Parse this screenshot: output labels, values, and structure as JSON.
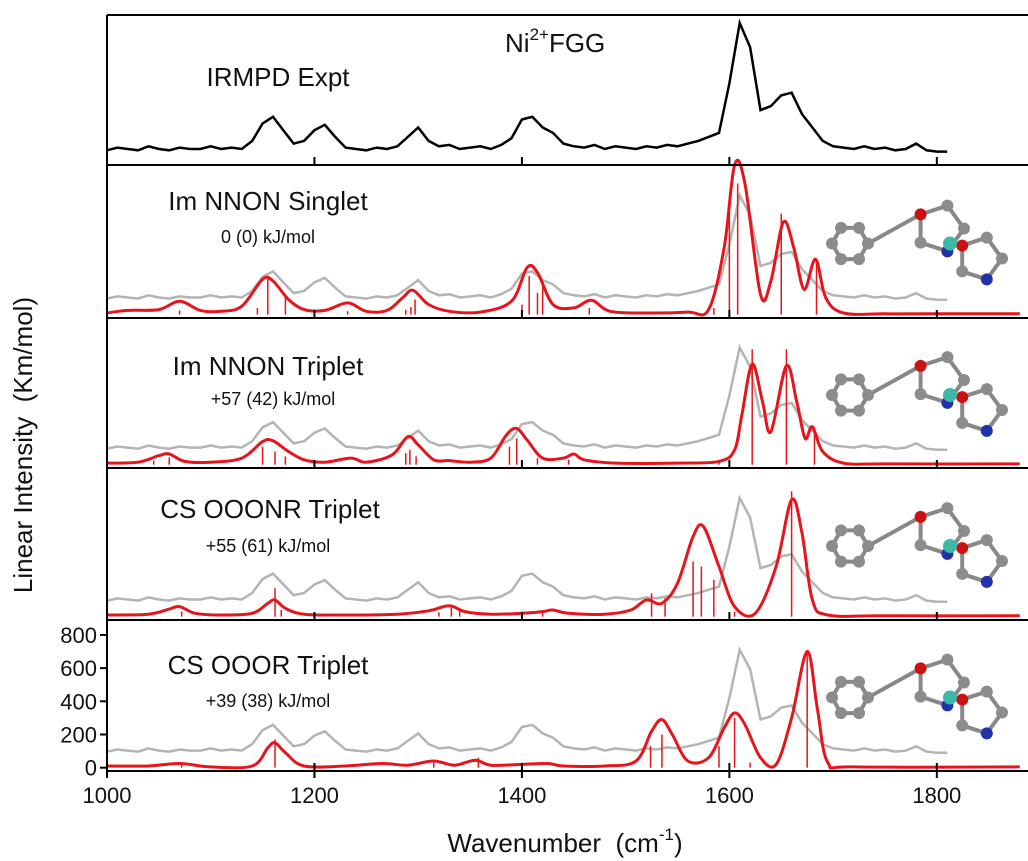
{
  "chart_data": [
    {
      "type": "line",
      "title": "IRMPD Expt",
      "annotation": [
        "Ni",
        "2+",
        "FGG"
      ],
      "color": "#000000",
      "xlim": [
        1000,
        1885
      ],
      "x": [
        1000,
        1010,
        1020,
        1030,
        1040,
        1050,
        1060,
        1070,
        1080,
        1090,
        1100,
        1110,
        1120,
        1130,
        1140,
        1150,
        1160,
        1170,
        1180,
        1190,
        1200,
        1210,
        1220,
        1230,
        1240,
        1250,
        1260,
        1270,
        1280,
        1290,
        1300,
        1310,
        1320,
        1330,
        1340,
        1350,
        1360,
        1370,
        1380,
        1390,
        1400,
        1410,
        1420,
        1430,
        1440,
        1450,
        1460,
        1470,
        1480,
        1490,
        1500,
        1510,
        1520,
        1530,
        1540,
        1550,
        1560,
        1570,
        1580,
        1590,
        1600,
        1610,
        1620,
        1630,
        1640,
        1650,
        1660,
        1670,
        1680,
        1690,
        1700,
        1710,
        1720,
        1730,
        1740,
        1750,
        1760,
        1770,
        1780,
        1790,
        1800,
        1810
      ],
      "values": [
        5,
        7,
        6,
        5,
        8,
        6,
        5,
        7,
        6,
        6,
        8,
        6,
        7,
        6,
        12,
        25,
        30,
        20,
        10,
        12,
        20,
        24,
        15,
        7,
        6,
        5,
        7,
        6,
        8,
        15,
        22,
        12,
        8,
        9,
        6,
        7,
        8,
        6,
        9,
        14,
        28,
        30,
        22,
        18,
        10,
        8,
        7,
        9,
        6,
        8,
        7,
        6,
        8,
        7,
        9,
        8,
        10,
        12,
        15,
        18,
        55,
        100,
        82,
        35,
        38,
        46,
        48,
        32,
        22,
        12,
        8,
        7,
        6,
        8,
        6,
        7,
        5,
        6,
        10,
        5,
        4,
        4
      ]
    },
    {
      "type": "spectrum",
      "title": "Im NNON Singlet",
      "subtitle": "0 (0) kJ/mol",
      "reference_color": "#b4b4b4",
      "xlim": [
        1000,
        1885
      ],
      "ylim": [
        -20,
        890
      ],
      "curve": {
        "color": "#e8141b",
        "x": [
          1000,
          1020,
          1050,
          1070,
          1090,
          1110,
          1130,
          1150,
          1160,
          1175,
          1190,
          1210,
          1232,
          1250,
          1270,
          1285,
          1295,
          1310,
          1330,
          1360,
          1390,
          1405,
          1415,
          1430,
          1450,
          1467,
          1485,
          1520,
          1560,
          1580,
          1595,
          1605,
          1615,
          1630,
          1640,
          1652,
          1662,
          1672,
          1683,
          1693,
          1710,
          1750,
          1800,
          1880
        ],
        "values": [
          10,
          25,
          30,
          80,
          25,
          20,
          50,
          210,
          200,
          90,
          30,
          25,
          70,
          20,
          25,
          100,
          145,
          60,
          20,
          15,
          80,
          280,
          250,
          60,
          40,
          85,
          20,
          10,
          15,
          30,
          400,
          890,
          780,
          120,
          200,
          550,
          400,
          150,
          330,
          100,
          10,
          5,
          5,
          5
        ]
      },
      "sticks": {
        "color": "#e8141b",
        "x": [
          1070,
          1145,
          1155,
          1172,
          1232,
          1288,
          1293,
          1297,
          1400,
          1407,
          1415,
          1420,
          1465,
          1585,
          1600,
          1608,
          1650,
          1684
        ],
        "values": [
          25,
          40,
          220,
          110,
          20,
          30,
          45,
          90,
          60,
          230,
          130,
          200,
          40,
          40,
          680,
          780,
          600,
          320
        ]
      }
    },
    {
      "type": "spectrum",
      "title": "Im NNON Triplet",
      "subtitle": "+57 (42) kJ/mol",
      "reference_color": "#b4b4b4",
      "xlim": [
        1000,
        1885
      ],
      "ylim": [
        -20,
        890
      ],
      "curve": {
        "color": "#e8141b",
        "x": [
          1000,
          1030,
          1050,
          1060,
          1075,
          1100,
          1130,
          1150,
          1160,
          1175,
          1190,
          1210,
          1235,
          1250,
          1275,
          1290,
          1300,
          1315,
          1330,
          1350,
          1370,
          1385,
          1395,
          1405,
          1420,
          1440,
          1450,
          1460,
          1490,
          1550,
          1590,
          1605,
          1612,
          1622,
          1632,
          1640,
          1655,
          1665,
          1673,
          1680,
          1690,
          1710,
          1750,
          1880
        ],
        "values": [
          10,
          15,
          55,
          65,
          20,
          15,
          40,
          140,
          145,
          80,
          30,
          15,
          40,
          15,
          60,
          170,
          120,
          30,
          25,
          15,
          40,
          180,
          220,
          150,
          40,
          40,
          65,
          30,
          10,
          10,
          20,
          90,
          300,
          610,
          380,
          200,
          600,
          380,
          160,
          230,
          80,
          10,
          5,
          5
        ]
      },
      "sticks": {
        "color": "#e8141b",
        "x": [
          1045,
          1060,
          1150,
          1162,
          1172,
          1288,
          1292,
          1298,
          1388,
          1395,
          1415,
          1445,
          1590,
          1622,
          1655,
          1682
        ],
        "values": [
          25,
          45,
          110,
          80,
          50,
          70,
          90,
          50,
          110,
          160,
          40,
          30,
          20,
          700,
          700,
          230
        ]
      }
    },
    {
      "type": "spectrum",
      "title": "CS OOONR Triplet",
      "subtitle": "+55 (61) kJ/mol",
      "reference_color": "#b4b4b4",
      "xlim": [
        1000,
        1885
      ],
      "ylim": [
        -20,
        890
      ],
      "curve": {
        "color": "#e8141b",
        "x": [
          1000,
          1040,
          1060,
          1070,
          1085,
          1110,
          1140,
          1155,
          1162,
          1172,
          1190,
          1230,
          1280,
          1310,
          1330,
          1345,
          1370,
          1400,
          1420,
          1430,
          1445,
          1480,
          1505,
          1520,
          1535,
          1550,
          1565,
          1575,
          1590,
          1605,
          1625,
          1645,
          1660,
          1670,
          1680,
          1695,
          1750,
          1880
        ],
        "values": [
          10,
          15,
          45,
          60,
          20,
          10,
          20,
          80,
          100,
          50,
          15,
          10,
          15,
          35,
          65,
          30,
          15,
          20,
          30,
          40,
          20,
          15,
          40,
          100,
          80,
          200,
          480,
          540,
          300,
          60,
          20,
          300,
          700,
          500,
          100,
          10,
          5,
          5
        ]
      },
      "sticks": {
        "color": "#e8141b",
        "x": [
          1072,
          1162,
          1168,
          1320,
          1332,
          1340,
          1420,
          1525,
          1538,
          1565,
          1573,
          1585,
          1605,
          1660
        ],
        "values": [
          30,
          170,
          40,
          25,
          60,
          40,
          20,
          140,
          110,
          330,
          300,
          220,
          30,
          750
        ]
      }
    },
    {
      "type": "spectrum",
      "title": "CS OOOR Triplet",
      "subtitle": "+39 (38) kJ/mol",
      "reference_color": "#b4b4b4",
      "xlim": [
        1000,
        1885
      ],
      "ylim": [
        -20,
        890
      ],
      "xticks": [
        1000,
        1200,
        1400,
        1600,
        1800
      ],
      "yticks": [
        0,
        200,
        400,
        600,
        800
      ],
      "x_label": [
        "Wavenumber  (cm",
        "-1",
        ")"
      ],
      "y_label": "Linear Intensity  (Km/mol)",
      "curve": {
        "color": "#e8141b",
        "x": [
          1000,
          1040,
          1070,
          1100,
          1140,
          1155,
          1162,
          1172,
          1190,
          1230,
          1265,
          1290,
          1315,
          1335,
          1355,
          1370,
          1400,
          1425,
          1440,
          1480,
          1510,
          1525,
          1535,
          1545,
          1560,
          1580,
          1595,
          1605,
          1615,
          1630,
          1645,
          1660,
          1675,
          1685,
          1695,
          1720,
          1880
        ],
        "values": [
          10,
          10,
          25,
          5,
          10,
          120,
          150,
          90,
          10,
          10,
          25,
          15,
          40,
          15,
          45,
          15,
          20,
          25,
          10,
          10,
          40,
          220,
          290,
          200,
          40,
          60,
          240,
          330,
          260,
          60,
          20,
          300,
          700,
          350,
          30,
          5,
          5
        ]
      },
      "sticks": {
        "color": "#e8141b",
        "x": [
          1072,
          1162,
          1315,
          1358,
          1524,
          1535,
          1590,
          1605,
          1620,
          1675
        ],
        "values": [
          20,
          170,
          30,
          60,
          130,
          200,
          130,
          300,
          30,
          700
        ]
      }
    }
  ]
}
